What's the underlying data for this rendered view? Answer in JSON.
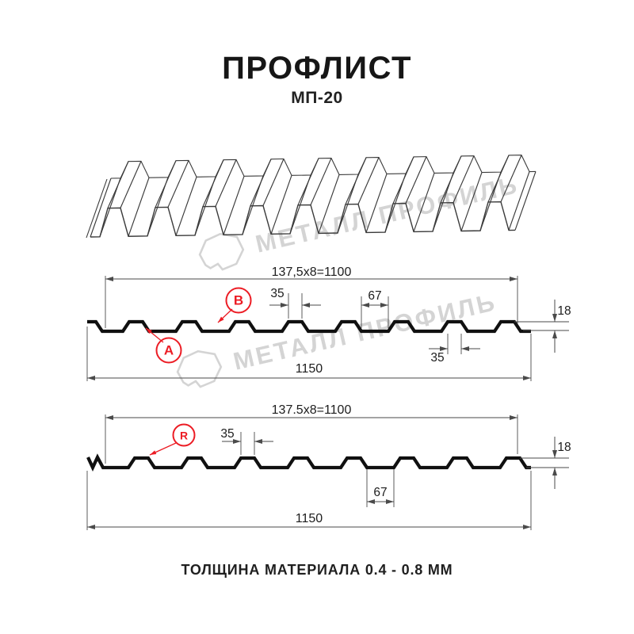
{
  "title": "ПРОФЛИСТ",
  "subtitle": "МП-20",
  "footer": "ТОЛЩИНА МАТЕРИАЛА 0.4 - 0.8 ММ",
  "watermark": {
    "text": "МЕТАЛЛ ПРОФИЛЬ"
  },
  "colors": {
    "accent_red": "#ec1c24",
    "watermark_gray": "#d4d4d4",
    "wireframe_line": "#3a3a3a",
    "profile_black": "#101010",
    "dim_text": "#1d1d1d"
  },
  "section_top": {
    "pitch_formula": "137,5x8=1100",
    "width_total": "1150",
    "rib_top_width": "35",
    "groove_width": "67",
    "height": "18",
    "valley_width": "35",
    "label_a": "A",
    "label_b": "B"
  },
  "section_bottom": {
    "pitch_formula": "137.5x8=1100",
    "width_total": "1150",
    "rib_top_width": "35",
    "groove_width": "67",
    "height": "18",
    "label_r": "R"
  }
}
